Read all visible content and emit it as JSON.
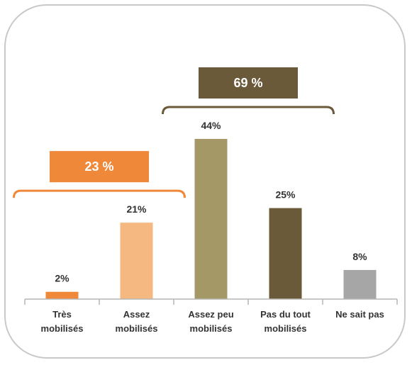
{
  "chart_data": {
    "type": "bar",
    "categories": [
      [
        "Très",
        "mobilisés"
      ],
      [
        "Assez",
        "mobilisés"
      ],
      [
        "Assez peu",
        "mobilisés"
      ],
      [
        "Pas du tout",
        "mobilisés"
      ],
      [
        "Ne sait pas"
      ]
    ],
    "values": [
      2,
      21,
      44,
      25,
      8
    ],
    "value_labels": [
      "2%",
      "21%",
      "44%",
      "25%",
      "8%"
    ],
    "colors": [
      "#f0883a",
      "#f5b880",
      "#a39866",
      "#6b5a3a",
      "#a6a6a6"
    ],
    "ylim": [
      0,
      44
    ],
    "groups": [
      {
        "label": "23 %",
        "span": [
          0,
          1
        ],
        "color": "#f0883a"
      },
      {
        "label": "69 %",
        "span": [
          2,
          3
        ],
        "color": "#6b5a3a"
      }
    ]
  }
}
